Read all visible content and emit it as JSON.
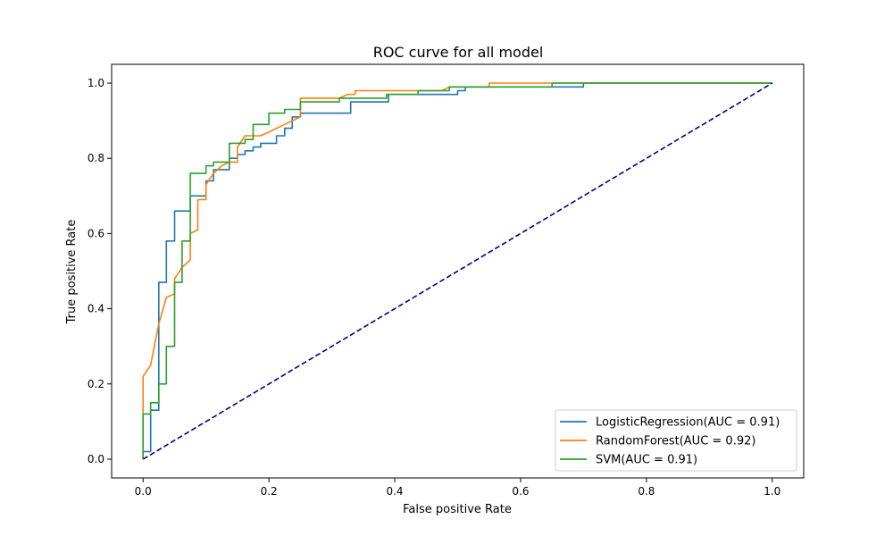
{
  "chart_data": {
    "type": "line",
    "title": "ROC curve for all model",
    "xlabel": "False positive Rate",
    "ylabel": "True positive Rate",
    "xlim": [
      -0.05,
      1.05
    ],
    "ylim": [
      -0.05,
      1.05
    ],
    "xticks": [
      0.0,
      0.2,
      0.4,
      0.6,
      0.8,
      1.0
    ],
    "yticks": [
      0.0,
      0.2,
      0.4,
      0.6,
      0.8,
      1.0
    ],
    "xtick_labels": [
      "0.0",
      "0.2",
      "0.4",
      "0.6",
      "0.8",
      "1.0"
    ],
    "ytick_labels": [
      "0.0",
      "0.2",
      "0.4",
      "0.6",
      "0.8",
      "1.0"
    ],
    "grid": false,
    "legend_position": "lower-right",
    "series": [
      {
        "name": "LogisticRegression(AUC = 0.91)",
        "color": "#1f77b4",
        "points": [
          [
            0,
            0
          ],
          [
            0,
            0.02
          ],
          [
            0.012,
            0.02
          ],
          [
            0.012,
            0.13
          ],
          [
            0.025,
            0.13
          ],
          [
            0.025,
            0.47
          ],
          [
            0.037,
            0.47
          ],
          [
            0.037,
            0.58
          ],
          [
            0.05,
            0.58
          ],
          [
            0.05,
            0.66
          ],
          [
            0.075,
            0.66
          ],
          [
            0.075,
            0.7
          ],
          [
            0.1,
            0.7
          ],
          [
            0.1,
            0.74
          ],
          [
            0.112,
            0.74
          ],
          [
            0.112,
            0.77
          ],
          [
            0.137,
            0.77
          ],
          [
            0.137,
            0.8
          ],
          [
            0.15,
            0.8
          ],
          [
            0.15,
            0.81
          ],
          [
            0.162,
            0.81
          ],
          [
            0.162,
            0.82
          ],
          [
            0.175,
            0.82
          ],
          [
            0.175,
            0.83
          ],
          [
            0.187,
            0.83
          ],
          [
            0.187,
            0.84
          ],
          [
            0.212,
            0.84
          ],
          [
            0.212,
            0.86
          ],
          [
            0.225,
            0.86
          ],
          [
            0.225,
            0.88
          ],
          [
            0.237,
            0.88
          ],
          [
            0.237,
            0.91
          ],
          [
            0.25,
            0.91
          ],
          [
            0.25,
            0.92
          ],
          [
            0.33,
            0.92
          ],
          [
            0.33,
            0.95
          ],
          [
            0.39,
            0.95
          ],
          [
            0.39,
            0.97
          ],
          [
            0.5,
            0.97
          ],
          [
            0.5,
            0.98
          ],
          [
            0.512,
            0.98
          ],
          [
            0.512,
            0.99
          ],
          [
            0.7,
            0.99
          ],
          [
            0.7,
            1.0
          ],
          [
            1.0,
            1.0
          ]
        ]
      },
      {
        "name": "RandomForest(AUC = 0.92)",
        "color": "#ff7f0e",
        "points": [
          [
            0,
            0
          ],
          [
            0,
            0.22
          ],
          [
            0.012,
            0.25
          ],
          [
            0.025,
            0.36
          ],
          [
            0.037,
            0.43
          ],
          [
            0.05,
            0.44
          ],
          [
            0.05,
            0.48
          ],
          [
            0.062,
            0.51
          ],
          [
            0.075,
            0.53
          ],
          [
            0.075,
            0.6
          ],
          [
            0.087,
            0.61
          ],
          [
            0.087,
            0.69
          ],
          [
            0.1,
            0.69
          ],
          [
            0.1,
            0.73
          ],
          [
            0.112,
            0.76
          ],
          [
            0.125,
            0.78
          ],
          [
            0.137,
            0.79
          ],
          [
            0.15,
            0.79
          ],
          [
            0.15,
            0.83
          ],
          [
            0.162,
            0.86
          ],
          [
            0.187,
            0.86
          ],
          [
            0.2,
            0.87
          ],
          [
            0.212,
            0.88
          ],
          [
            0.225,
            0.89
          ],
          [
            0.237,
            0.9
          ],
          [
            0.25,
            0.91
          ],
          [
            0.25,
            0.96
          ],
          [
            0.312,
            0.96
          ],
          [
            0.325,
            0.97
          ],
          [
            0.337,
            0.97
          ],
          [
            0.337,
            0.98
          ],
          [
            0.475,
            0.98
          ],
          [
            0.487,
            0.99
          ],
          [
            0.55,
            0.99
          ],
          [
            0.55,
            1.0
          ],
          [
            1.0,
            1.0
          ]
        ]
      },
      {
        "name": "SVM(AUC = 0.91)",
        "color": "#2ca02c",
        "points": [
          [
            0,
            0
          ],
          [
            0,
            0.12
          ],
          [
            0.012,
            0.12
          ],
          [
            0.012,
            0.15
          ],
          [
            0.025,
            0.15
          ],
          [
            0.025,
            0.2
          ],
          [
            0.037,
            0.2
          ],
          [
            0.037,
            0.3
          ],
          [
            0.05,
            0.3
          ],
          [
            0.05,
            0.47
          ],
          [
            0.062,
            0.47
          ],
          [
            0.062,
            0.58
          ],
          [
            0.075,
            0.58
          ],
          [
            0.075,
            0.76
          ],
          [
            0.1,
            0.76
          ],
          [
            0.1,
            0.78
          ],
          [
            0.112,
            0.78
          ],
          [
            0.112,
            0.79
          ],
          [
            0.137,
            0.79
          ],
          [
            0.137,
            0.84
          ],
          [
            0.162,
            0.84
          ],
          [
            0.162,
            0.85
          ],
          [
            0.175,
            0.85
          ],
          [
            0.175,
            0.89
          ],
          [
            0.2,
            0.89
          ],
          [
            0.2,
            0.92
          ],
          [
            0.225,
            0.92
          ],
          [
            0.225,
            0.93
          ],
          [
            0.25,
            0.93
          ],
          [
            0.25,
            0.95
          ],
          [
            0.312,
            0.95
          ],
          [
            0.312,
            0.96
          ],
          [
            0.387,
            0.96
          ],
          [
            0.387,
            0.97
          ],
          [
            0.437,
            0.97
          ],
          [
            0.437,
            0.98
          ],
          [
            0.487,
            0.98
          ],
          [
            0.487,
            0.99
          ],
          [
            0.65,
            0.99
          ],
          [
            0.65,
            1.0
          ],
          [
            1.0,
            1.0
          ]
        ]
      },
      {
        "name": "",
        "color": "#000080",
        "dashed": true,
        "points": [
          [
            0,
            0
          ],
          [
            1,
            1
          ]
        ]
      }
    ]
  }
}
